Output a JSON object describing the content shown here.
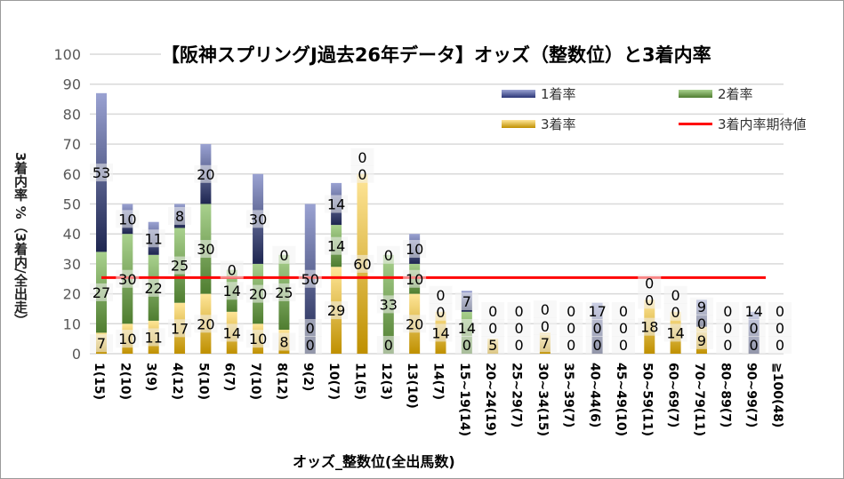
{
  "chart_data": {
    "type": "bar",
    "stacked": true,
    "title": "【阪神スプリングJ過去26年データ】オッズ（整数位）と3着内率",
    "xlabel": "オッズ_整数位(全出馬数)",
    "ylabel": "3着内率 %（3着内/全出走）",
    "ylim": [
      0,
      100
    ],
    "yticks": [
      0,
      10,
      20,
      30,
      40,
      50,
      60,
      70,
      80,
      90,
      100
    ],
    "grid": true,
    "legend_position": "top-right",
    "categories": [
      "1(15)",
      "2(10)",
      "3(9)",
      "4(12)",
      "5(10)",
      "6(7)",
      "7(10)",
      "8(12)",
      "9(2)",
      "10(7)",
      "11(5)",
      "12(3)",
      "13(10)",
      "14(7)",
      "15~19(14)",
      "20~24(19)",
      "25~29(7)",
      "30~34(15)",
      "35~39(7)",
      "40~44(6)",
      "45~49(10)",
      "50~59(11)",
      "60~69(7)",
      "70~79(11)",
      "80~89(7)",
      "90~99(7)",
      "≧100(48)"
    ],
    "series": [
      {
        "name": "3着率",
        "color": "#c9961a",
        "values": [
          7,
          10,
          11,
          17,
          20,
          14,
          10,
          8,
          0,
          29,
          60,
          0,
          20,
          14,
          0,
          5,
          0,
          7,
          0,
          0,
          0,
          18,
          14,
          9,
          0,
          0,
          0
        ]
      },
      {
        "name": "2着率",
        "color": "#5a8a3a",
        "values": [
          27,
          30,
          22,
          25,
          30,
          14,
          20,
          25,
          0,
          14,
          0,
          33,
          10,
          0,
          14,
          0,
          0,
          0,
          0,
          0,
          0,
          0,
          0,
          0,
          0,
          0,
          0
        ]
      },
      {
        "name": "1着率",
        "color": "#3c4a8e",
        "values": [
          53,
          10,
          11,
          8,
          20,
          0,
          30,
          0,
          50,
          14,
          0,
          0,
          10,
          0,
          7,
          0,
          0,
          0,
          0,
          17,
          0,
          0,
          0,
          9,
          0,
          14,
          0
        ]
      }
    ],
    "reference_line": {
      "name": "3着内率期待値",
      "color": "#ff0000",
      "value": 25.4
    }
  }
}
